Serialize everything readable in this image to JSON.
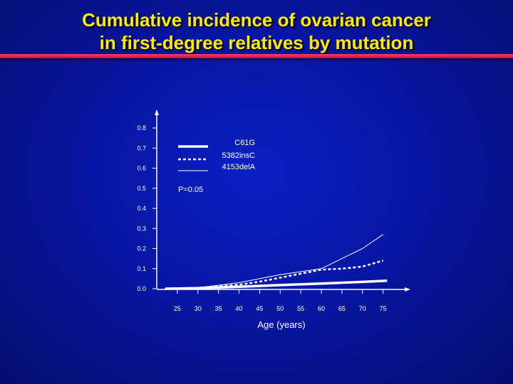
{
  "title": {
    "line1": "Cumulative incidence of ovarian cancer",
    "line2": "in first-degree relatives by mutation"
  },
  "colors": {
    "title": "#ffea00",
    "rule": "#e0204f",
    "background": "#0716a3",
    "series": "#ffffff"
  },
  "chart_data": {
    "type": "line",
    "xlabel": "Age (years)",
    "ylabel": "",
    "xlim": [
      20,
      78
    ],
    "ylim": [
      0,
      0.8
    ],
    "x_ticks": [
      25,
      30,
      35,
      40,
      45,
      50,
      55,
      60,
      65,
      70,
      75
    ],
    "y_ticks": [
      0.0,
      0.1,
      0.2,
      0.3,
      0.4,
      0.5,
      0.6,
      0.7,
      0.8
    ],
    "y_tick_labels": [
      "0.0",
      "0.1",
      "0.2",
      "0.3",
      "0.4",
      "0.5",
      "0.6",
      "0.7",
      "0.8"
    ],
    "annotation": "P=0.05",
    "legend_position": "top-right",
    "grid": false,
    "series": [
      {
        "name": "C61G",
        "style": "thick-solid",
        "x": [
          22,
          30,
          40,
          50,
          60,
          70,
          76
        ],
        "y": [
          0.0,
          0.003,
          0.01,
          0.018,
          0.026,
          0.034,
          0.04
        ]
      },
      {
        "name": "5382insC",
        "style": "dashed",
        "x": [
          22,
          30,
          40,
          45,
          50,
          55,
          60,
          65,
          70,
          75
        ],
        "y": [
          0.0,
          0.005,
          0.02,
          0.035,
          0.055,
          0.075,
          0.095,
          0.1,
          0.11,
          0.14
        ]
      },
      {
        "name": "4153delA",
        "style": "thin-solid",
        "x": [
          22,
          30,
          40,
          45,
          50,
          55,
          60,
          65,
          70,
          75
        ],
        "y": [
          0.0,
          0.005,
          0.03,
          0.05,
          0.07,
          0.085,
          0.1,
          0.15,
          0.2,
          0.27
        ]
      }
    ]
  }
}
